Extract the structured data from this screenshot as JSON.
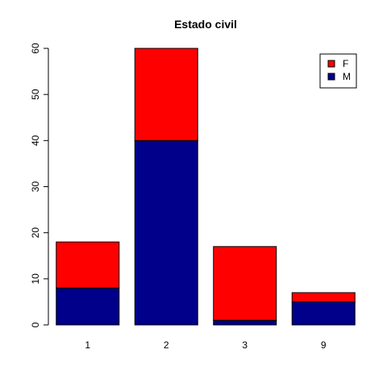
{
  "chart_data": {
    "type": "bar",
    "stacked": true,
    "title": "Estado civil",
    "xlabel": "",
    "ylabel": "",
    "categories": [
      "1",
      "2",
      "3",
      "9"
    ],
    "series": [
      {
        "name": "M",
        "values": [
          8,
          40,
          1,
          5
        ],
        "color": "#00008B"
      },
      {
        "name": "F",
        "values": [
          10,
          20,
          16,
          2
        ],
        "color": "#FF0000"
      }
    ],
    "ylim": [
      0,
      60
    ],
    "yticks": [
      0,
      10,
      20,
      30,
      40,
      50,
      60
    ],
    "grid": false,
    "legend_position": "top-right",
    "legend_order": [
      "F",
      "M"
    ]
  }
}
